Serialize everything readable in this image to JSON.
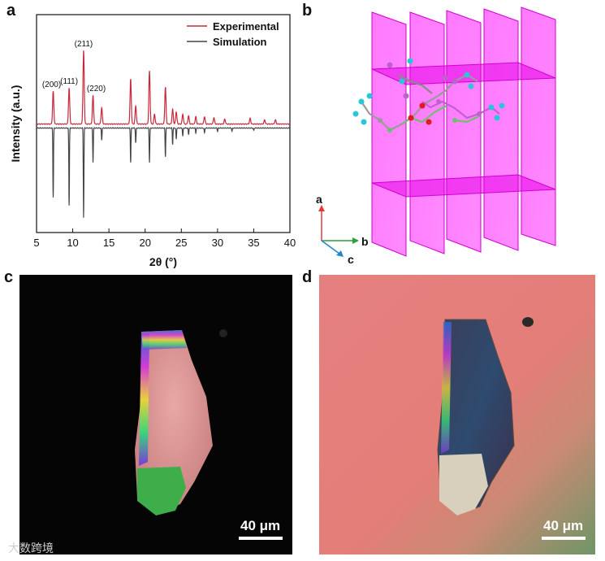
{
  "panels": {
    "a": "a",
    "b": "b",
    "c": "c",
    "d": "d"
  },
  "chart_data": {
    "type": "line",
    "xlabel": "2θ (°)",
    "ylabel": "Intensity (a.u.)",
    "xlim": [
      5,
      40
    ],
    "xticks": [
      "5",
      "10",
      "15",
      "20",
      "25",
      "30",
      "35",
      "40"
    ],
    "legend": {
      "position": "top-right"
    },
    "series": [
      {
        "name": "Experimental",
        "color": "#c8283c",
        "peaks": [
          [
            7.3,
            40
          ],
          [
            9.5,
            44
          ],
          [
            11.5,
            90
          ],
          [
            12.8,
            35
          ],
          [
            14.0,
            20
          ],
          [
            18.0,
            55
          ],
          [
            18.7,
            22
          ],
          [
            20.6,
            65
          ],
          [
            21.3,
            12
          ],
          [
            22.8,
            45
          ],
          [
            23.8,
            18
          ],
          [
            24.3,
            15
          ],
          [
            25.2,
            12
          ],
          [
            26.0,
            10
          ],
          [
            27.0,
            9
          ],
          [
            28.2,
            9
          ],
          [
            29.5,
            8
          ],
          [
            31.0,
            6
          ],
          [
            34.5,
            7
          ],
          [
            36.5,
            5
          ],
          [
            38.0,
            5
          ]
        ]
      },
      {
        "name": "Simulation",
        "color": "#444444",
        "peaks": [
          [
            7.3,
            85
          ],
          [
            9.5,
            95
          ],
          [
            11.5,
            110
          ],
          [
            12.8,
            42
          ],
          [
            14.0,
            15
          ],
          [
            18.0,
            42
          ],
          [
            18.7,
            18
          ],
          [
            20.6,
            42
          ],
          [
            22.8,
            35
          ],
          [
            23.8,
            20
          ],
          [
            24.3,
            14
          ],
          [
            25.2,
            10
          ],
          [
            26.0,
            8
          ],
          [
            27.0,
            6
          ],
          [
            28.2,
            6
          ],
          [
            30.0,
            4
          ],
          [
            32.0,
            4
          ],
          [
            35.0,
            3
          ]
        ]
      }
    ],
    "annotations": [
      {
        "label": "(200)",
        "x": 7.3
      },
      {
        "label": "(111)",
        "x": 9.5
      },
      {
        "label": "(211)",
        "x": 11.5
      },
      {
        "label": "(220)",
        "x": 12.8
      }
    ]
  },
  "crystal": {
    "axes": [
      "a",
      "b",
      "c"
    ],
    "axis_colors": {
      "a": "#e53935",
      "b": "#2e9e3a",
      "c": "#1e88c8"
    },
    "plane_color": "#ff00ff"
  },
  "micrographs": {
    "c_scale": "40 μm",
    "d_scale": "40 μm"
  },
  "watermark": "大数跨境"
}
